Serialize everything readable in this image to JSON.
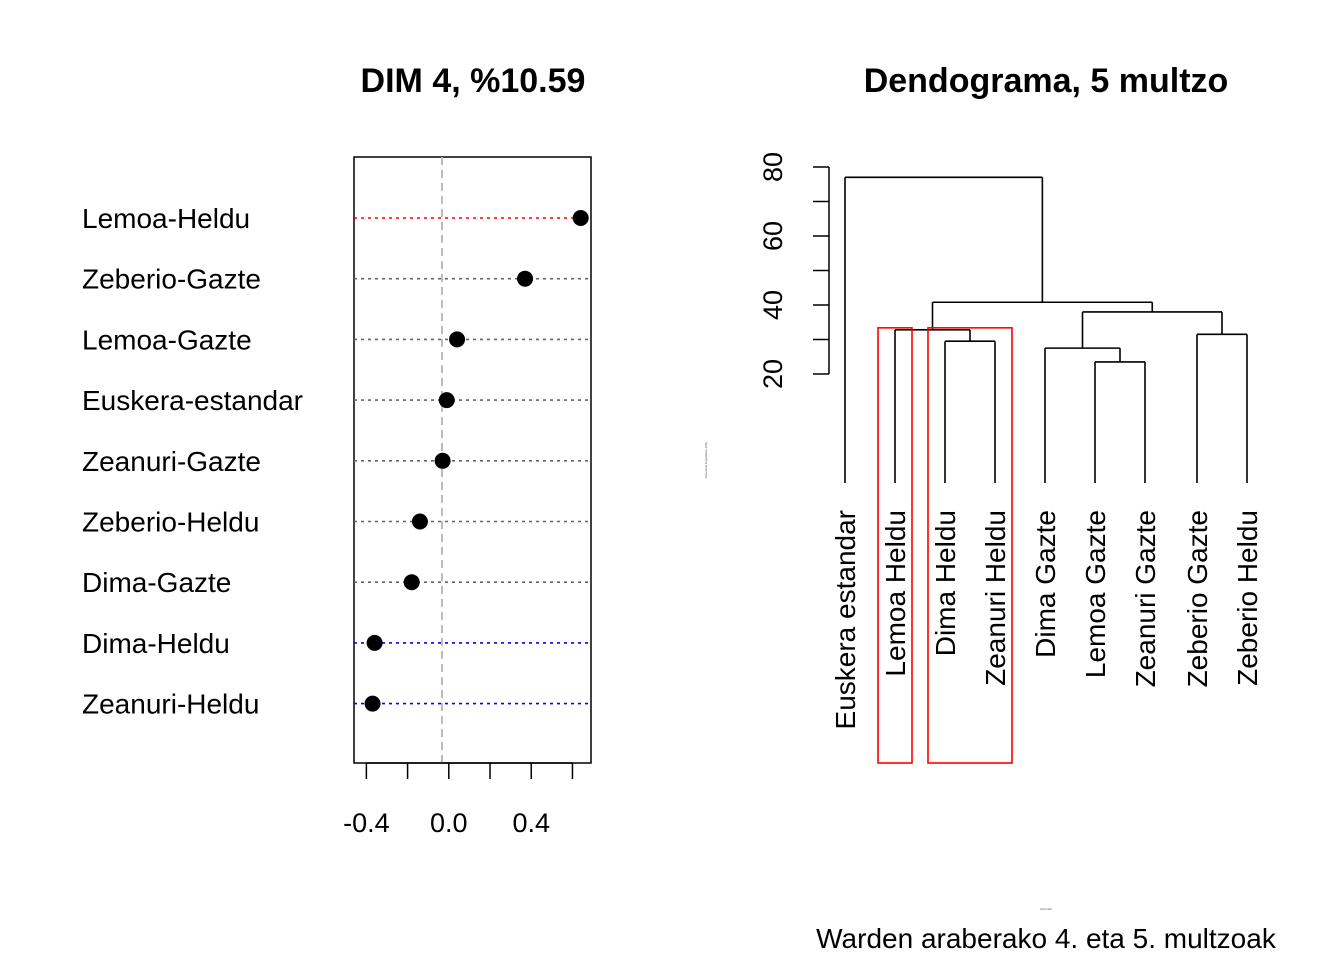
{
  "dotchart": {
    "title": "DIM 4, %10.59",
    "xlim": [
      -0.46,
      0.69
    ],
    "xticks": [
      -0.4,
      -0.2,
      0.0,
      0.2,
      0.4,
      0.6
    ],
    "xtick_labels": [
      "-0.4",
      "0.0",
      "0.4"
    ],
    "zero_line_color": "#bbbbbb"
  },
  "dendrogram": {
    "title": "Dendograma, 5 multzo",
    "y_ticks": [
      "20",
      "40",
      "60",
      "80"
    ],
    "ylabel_small": "Distantzia linguistikoa (RD)",
    "xlabel_small": "Hiztunak",
    "caption": "Warden araberako 4. eta 5. multzoak",
    "highlight_color": "#ff0000"
  },
  "chart_data": [
    {
      "type": "dot",
      "title": "DIM 4, %10.59",
      "categories": [
        "Lemoa-Heldu",
        "Zeberio-Gazte",
        "Lemoa-Gazte",
        "Euskera-estandar",
        "Zeanuri-Gazte",
        "Zeberio-Heldu",
        "Dima-Gazte",
        "Dima-Heldu",
        "Zeanuri-Heldu"
      ],
      "values": [
        0.64,
        0.37,
        0.04,
        -0.01,
        -0.03,
        -0.14,
        -0.18,
        -0.36,
        -0.37
      ],
      "line_colors": [
        "#ff0000",
        "#666666",
        "#666666",
        "#666666",
        "#666666",
        "#666666",
        "#666666",
        "#0000ff",
        "#0000ff"
      ],
      "xlim": [
        -0.46,
        0.69
      ],
      "grid": false,
      "legend": "none"
    },
    {
      "type": "dendrogram",
      "title": "Dendograma, 5 multzo",
      "leaves": [
        "Euskera estandar",
        "Lemoa Heldu",
        "Dima Heldu",
        "Zeanuri Heldu",
        "Dima Gazte",
        "Lemoa Gazte",
        "Zeanuri Gazte",
        "Zeberio Gazte",
        "Zeberio Heldu"
      ],
      "merges": [
        {
          "left": "Lemoa Gazte",
          "right": "Zeanuri Gazte",
          "height": 23.5
        },
        {
          "left": "Dima Heldu",
          "right": "Zeanuri Heldu",
          "height": 29.5
        },
        {
          "left": "Dima Gazte",
          "right": "Lemoa Gazte + Zeanuri Gazte",
          "height": 27.5
        },
        {
          "left": "Zeberio Gazte",
          "right": "Zeberio Heldu",
          "height": 31.5
        },
        {
          "left": "Lemoa Heldu",
          "right": "Dima Heldu + Zeanuri Heldu",
          "height": 32.8
        },
        {
          "left": "Dima Gazte + Lemoa Gazte + Zeanuri Gazte",
          "right": "Zeberio Gazte + Zeberio Heldu",
          "height": 38.0
        },
        {
          "left": "Lemoa Heldu + Dima Heldu + Zeanuri Heldu",
          "right": "Dima Gazte + Lemoa Gazte + Zeanuri Gazte + Zeberio Gazte + Zeberio Heldu",
          "height": 40.8
        },
        {
          "left": "Euskera estandar",
          "right": "all others",
          "height": 77.0
        }
      ],
      "highlighted_groups": [
        [
          "Lemoa Heldu"
        ],
        [
          "Dima Heldu",
          "Zeanuri Heldu"
        ]
      ],
      "ylim": [
        0,
        80
      ]
    }
  ]
}
